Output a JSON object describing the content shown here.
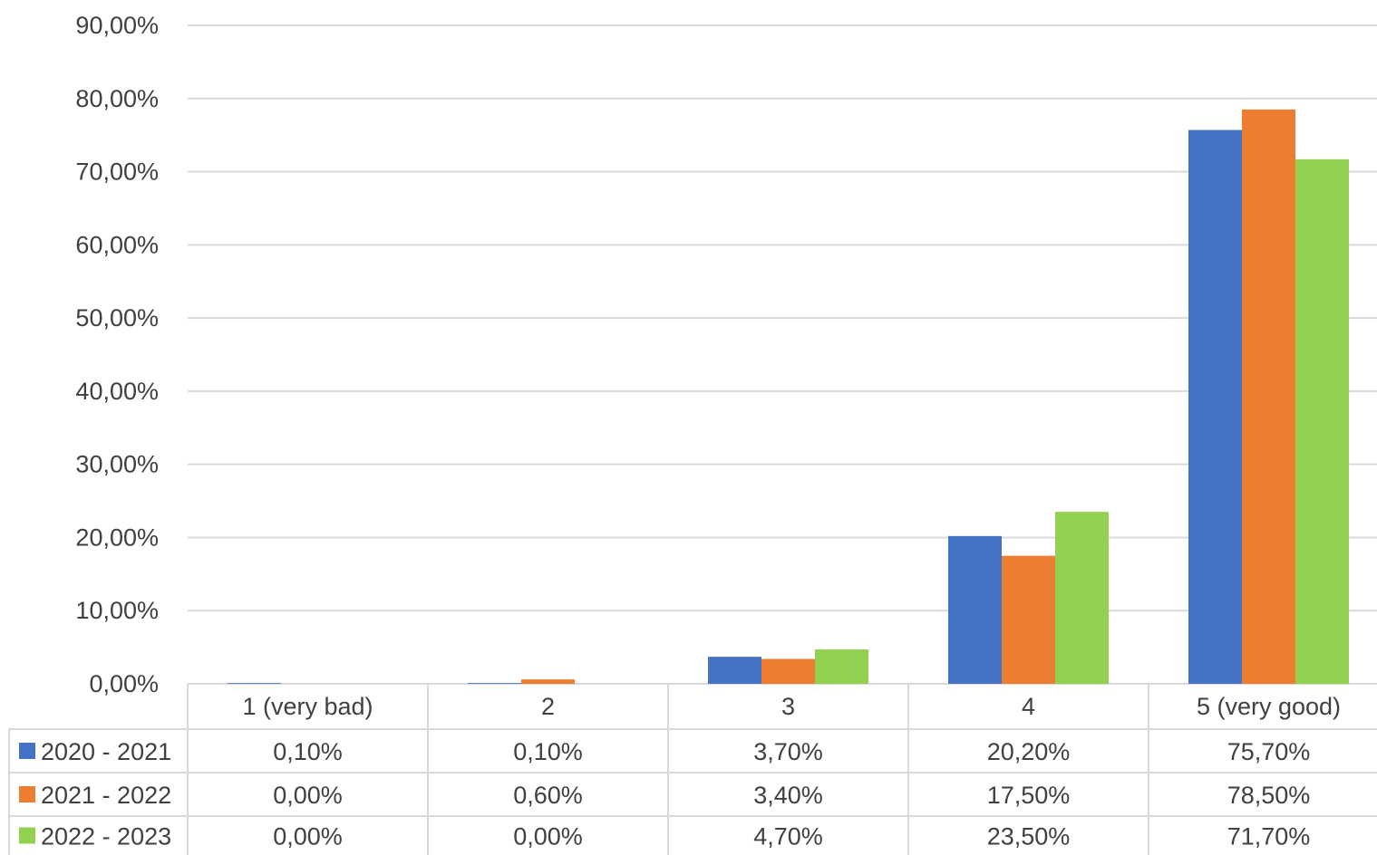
{
  "chart_data": {
    "type": "bar",
    "categories": [
      "1 (very bad)",
      "2",
      "3",
      "4",
      "5 (very good)"
    ],
    "series": [
      {
        "name": "2020 - 2021",
        "color": "#4472C4",
        "values": [
          0.1,
          0.1,
          3.7,
          20.2,
          75.7
        ],
        "labels": [
          "0,10%",
          "0,10%",
          "3,70%",
          "20,20%",
          "75,70%"
        ]
      },
      {
        "name": "2021 - 2022",
        "color": "#ED7D31",
        "values": [
          0.0,
          0.6,
          3.4,
          17.5,
          78.5
        ],
        "labels": [
          "0,00%",
          "0,60%",
          "3,40%",
          "17,50%",
          "78,50%"
        ]
      },
      {
        "name": "2022 - 2023",
        "color": "#92D050",
        "values": [
          0.0,
          0.0,
          4.7,
          23.5,
          71.7
        ],
        "labels": [
          "0,00%",
          "0,00%",
          "4,70%",
          "23,50%",
          "71,70%"
        ]
      }
    ],
    "y_ticks": [
      {
        "value": 0,
        "label": "0,00%"
      },
      {
        "value": 10,
        "label": "10,00%"
      },
      {
        "value": 20,
        "label": "20,00%"
      },
      {
        "value": 30,
        "label": "30,00%"
      },
      {
        "value": 40,
        "label": "40,00%"
      },
      {
        "value": 50,
        "label": "50,00%"
      },
      {
        "value": 60,
        "label": "60,00%"
      },
      {
        "value": 70,
        "label": "70,00%"
      },
      {
        "value": 80,
        "label": "80,00%"
      },
      {
        "value": 90,
        "label": "90,00%"
      }
    ],
    "ylim": [
      0,
      90
    ],
    "grid": true,
    "legend": "data-table",
    "title": "",
    "xlabel": "",
    "ylabel": ""
  }
}
